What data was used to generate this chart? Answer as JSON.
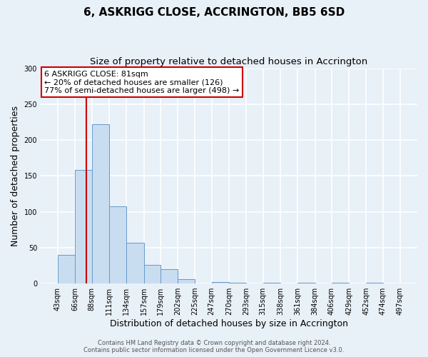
{
  "title": "6, ASKRIGG CLOSE, ACCRINGTON, BB5 6SD",
  "subtitle": "Size of property relative to detached houses in Accrington",
  "xlabel": "Distribution of detached houses by size in Accrington",
  "ylabel": "Number of detached properties",
  "bin_edges": [
    43,
    66,
    88,
    111,
    134,
    157,
    179,
    202,
    225,
    247,
    270,
    293,
    315,
    338,
    361,
    384,
    406,
    429,
    452,
    474,
    497
  ],
  "bar_heights": [
    40,
    158,
    222,
    108,
    57,
    26,
    20,
    6,
    0,
    2,
    1,
    0,
    1,
    0,
    1,
    0,
    1,
    0,
    1,
    0
  ],
  "bar_color": "#c9ddf0",
  "bar_edge_color": "#6699cc",
  "property_size": 81,
  "red_line_color": "#cc0000",
  "annotation_line1": "6 ASKRIGG CLOSE: 81sqm",
  "annotation_line2": "← 20% of detached houses are smaller (126)",
  "annotation_line3": "77% of semi-detached houses are larger (498) →",
  "annotation_box_color": "#ffffff",
  "annotation_box_edge_color": "#cc0000",
  "ylim": [
    0,
    300
  ],
  "yticks": [
    0,
    50,
    100,
    150,
    200,
    250,
    300
  ],
  "footer_line1": "Contains HM Land Registry data © Crown copyright and database right 2024.",
  "footer_line2": "Contains public sector information licensed under the Open Government Licence v3.0.",
  "plot_bg_color": "#e8f0f8",
  "fig_bg_color": "#e8f0f8",
  "grid_color": "#ffffff",
  "title_fontsize": 11,
  "subtitle_fontsize": 9.5,
  "xlabel_fontsize": 9,
  "ylabel_fontsize": 9,
  "tick_fontsize": 7,
  "footer_fontsize": 6,
  "annot_fontsize": 8
}
